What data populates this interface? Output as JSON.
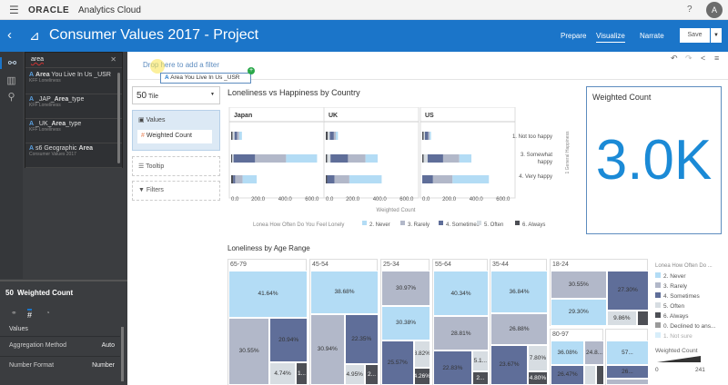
{
  "topbar": {
    "brand": "ORACLE",
    "product": "Analytics Cloud",
    "help": "?",
    "avatar": "A"
  },
  "header": {
    "title": "Consumer Values 2017 - Project",
    "tabs": [
      "Prepare",
      "Visualize",
      "Narrate"
    ],
    "active_tab": "Visualize",
    "save": "Save"
  },
  "search": {
    "value": "area",
    "results": [
      {
        "pre": "",
        "bold": "Area",
        "post": " You Live In Us _USR",
        "source": "KFF Loneliness"
      },
      {
        "pre": "_JAP_",
        "bold": "Area",
        "post": "_type",
        "source": "KFF Loneliness"
      },
      {
        "pre": "_UK_",
        "bold": "Area",
        "post": "_type",
        "source": "KFF Loneliness"
      },
      {
        "pre": "s6 Geographic ",
        "bold": "Area",
        "post": "",
        "source": "Consumer Values 2017"
      }
    ]
  },
  "filter": {
    "placeholder": "Drop here to add a filter",
    "drag_item": "Area You Live In Us _USR"
  },
  "grammar": {
    "viz_type": "Tile",
    "values_label": "Values",
    "values_item": "Weighted Count",
    "tooltip": "Tooltip",
    "filters": "Filters"
  },
  "properties": {
    "title": "Weighted Count",
    "section": "Values",
    "rows": [
      {
        "label": "Aggregation Method",
        "value": "Auto"
      },
      {
        "label": "Number Format",
        "value": "Number"
      }
    ]
  },
  "tile": {
    "title": "Weighted Count",
    "value": "3.0K"
  },
  "colors": {
    "Never": "#b3dcf5",
    "Rarely": "#b2b8c9",
    "Sometimes": "#5f6e99",
    "Often": "#d7dde2",
    "Always": "#4d4f55",
    "Declined": "#9a9a9a",
    "NotSure": "#d8eefa",
    "accent": "#1b75c9"
  },
  "chart_data": [
    {
      "type": "bar",
      "title": "Loneliness vs Happiness by Country",
      "xlabel": "Weighted Count",
      "ylabel": "1 General Happiness",
      "facets": [
        "Japan",
        "UK",
        "US"
      ],
      "categories": [
        "1. Not too happy",
        "3. Somewhat happy",
        "4. Very happy"
      ],
      "ticks": [
        "0.0",
        "200.0",
        "400.0",
        "600.0"
      ],
      "xlim": [
        0,
        700
      ],
      "legend_title": "Lonea How Often Do You Feel Lonely",
      "series": [
        {
          "name": "6. Always",
          "key": "Always"
        },
        {
          "name": "5. Often",
          "key": "Often"
        },
        {
          "name": "4. Sometimes",
          "key": "Sometimes"
        },
        {
          "name": "3. Rarely",
          "key": "Rarely"
        },
        {
          "name": "2. Never",
          "key": "Never"
        }
      ],
      "legend_order": [
        "2. Never",
        "3. Rarely",
        "4. Sometimes",
        "5. Often",
        "6. Always"
      ],
      "values": {
        "Japan": [
          [
            10,
            15,
            20,
            15,
            20
          ],
          [
            8,
            10,
            160,
            230,
            230
          ],
          [
            15,
            0,
            15,
            55,
            105
          ]
        ],
        "UK": [
          [
            15,
            15,
            30,
            15,
            15
          ],
          [
            10,
            25,
            130,
            130,
            90
          ],
          [
            10,
            0,
            55,
            110,
            240
          ]
        ],
        "US": [
          [
            10,
            10,
            25,
            10,
            10
          ],
          [
            10,
            30,
            115,
            120,
            90
          ],
          [
            0,
            0,
            80,
            145,
            270
          ]
        ]
      }
    },
    {
      "type": "treemap",
      "title": "Loneliness by Age Range",
      "legend_title": "Lonea How Often Do ...",
      "legend": [
        "2. Never",
        "3. Rarely",
        "4. Sometimes",
        "5. Often",
        "6. Always",
        "0. Declined to ans...",
        "1. Not sure"
      ],
      "size_legend": {
        "title": "Weighted Count",
        "min": "0",
        "max": "241"
      },
      "groups": [
        {
          "label": "65-79",
          "cells": [
            {
              "k": "Never",
              "v": "41.64%"
            },
            {
              "k": "Rarely",
              "v": "30.55%"
            },
            {
              "k": "Sometimes",
              "v": "20.94%"
            },
            {
              "k": "Often",
              "v": "4.74%"
            },
            {
              "k": "Always",
              "v": "1..."
            }
          ]
        },
        {
          "label": "45-54",
          "cells": [
            {
              "k": "Never",
              "v": "38.68%"
            },
            {
              "k": "Rarely",
              "v": "30.94%"
            },
            {
              "k": "Sometimes",
              "v": "22.35%"
            },
            {
              "k": "Often",
              "v": "4.95%"
            },
            {
              "k": "Always",
              "v": "2..."
            }
          ]
        },
        {
          "label": "25-34",
          "cells": [
            {
              "k": "Rarely",
              "v": "30.97%"
            },
            {
              "k": "Never",
              "v": "30.38%"
            },
            {
              "k": "Sometimes",
              "v": "25.57%"
            },
            {
              "k": "Often",
              "v": "8.82%"
            },
            {
              "k": "Always",
              "v": "4.26%"
            }
          ]
        },
        {
          "label": "55-64",
          "cells": [
            {
              "k": "Never",
              "v": "40.34%"
            },
            {
              "k": "Rarely",
              "v": "28.81%"
            },
            {
              "k": "Sometimes",
              "v": "22.83%"
            },
            {
              "k": "Often",
              "v": "5.1..."
            },
            {
              "k": "Always",
              "v": "2..."
            }
          ]
        },
        {
          "label": "35-44",
          "cells": [
            {
              "k": "Never",
              "v": "36.84%"
            },
            {
              "k": "Rarely",
              "v": "26.88%"
            },
            {
              "k": "Sometimes",
              "v": "23.67%"
            },
            {
              "k": "Often",
              "v": "7.80%"
            },
            {
              "k": "Always",
              "v": "4.80%"
            }
          ]
        },
        {
          "label": "18-24",
          "cells": [
            {
              "k": "Rarely",
              "v": "30.55%"
            },
            {
              "k": "Sometimes",
              "v": "27.30%"
            },
            {
              "k": "Never",
              "v": "29.30%"
            },
            {
              "k": "Often",
              "v": "9.86%"
            },
            {
              "k": "Always",
              "v": ""
            }
          ]
        },
        {
          "label": "80-97",
          "cells": [
            {
              "k": "Never",
              "v": "36.08%"
            },
            {
              "k": "Rarely",
              "v": "24.8..."
            },
            {
              "k": "Sometimes",
              "v": "26.47%"
            },
            {
              "k": "Often",
              "v": ""
            },
            {
              "k": "Always",
              "v": ""
            }
          ]
        },
        {
          "label": "",
          "cells": [
            {
              "k": "Never",
              "v": "57..."
            },
            {
              "k": "Sometimes",
              "v": "26..."
            },
            {
              "k": "Rarely",
              "v": ""
            }
          ]
        }
      ]
    }
  ]
}
